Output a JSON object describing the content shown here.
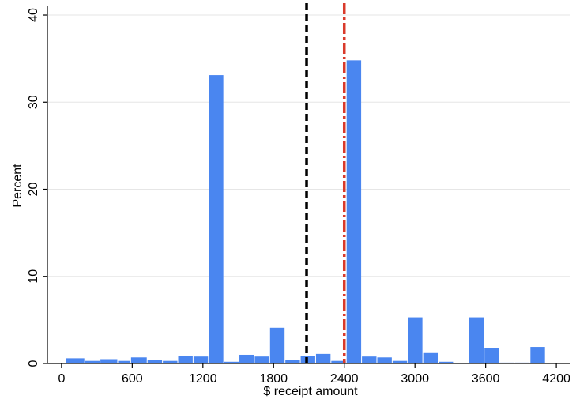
{
  "chart_data": {
    "type": "bar",
    "xlabel": "$ receipt amount",
    "ylabel": "Percent",
    "xlim": [
      -120,
      4320
    ],
    "ylim": [
      0,
      41
    ],
    "xticks": [
      0,
      600,
      1200,
      1800,
      2400,
      3000,
      3600,
      4200
    ],
    "yticks": [
      0,
      10,
      20,
      30,
      40
    ],
    "xtick_labels": [
      "0",
      "600",
      "1200",
      "1800",
      "2400",
      "3000",
      "3600",
      "4200"
    ],
    "ytick_labels": [
      "0",
      "10",
      "20",
      "30",
      "40"
    ],
    "grid": true,
    "bar_color": "#4a86f0",
    "bins": [
      {
        "x0": 40,
        "x1": 200,
        "value": 0.6
      },
      {
        "x0": 200,
        "x1": 330,
        "value": 0.3
      },
      {
        "x0": 330,
        "x1": 480,
        "value": 0.5
      },
      {
        "x0": 480,
        "x1": 590,
        "value": 0.3
      },
      {
        "x0": 590,
        "x1": 730,
        "value": 0.7
      },
      {
        "x0": 730,
        "x1": 860,
        "value": 0.4
      },
      {
        "x0": 860,
        "x1": 990,
        "value": 0.3
      },
      {
        "x0": 990,
        "x1": 1120,
        "value": 0.9
      },
      {
        "x0": 1120,
        "x1": 1250,
        "value": 0.8
      },
      {
        "x0": 1250,
        "x1": 1380,
        "value": 33.1
      },
      {
        "x0": 1380,
        "x1": 1510,
        "value": 0.2
      },
      {
        "x0": 1510,
        "x1": 1640,
        "value": 1.0
      },
      {
        "x0": 1640,
        "x1": 1770,
        "value": 0.8
      },
      {
        "x0": 1770,
        "x1": 1900,
        "value": 4.1
      },
      {
        "x0": 1900,
        "x1": 2030,
        "value": 0.4
      },
      {
        "x0": 2030,
        "x1": 2160,
        "value": 0.9
      },
      {
        "x0": 2160,
        "x1": 2290,
        "value": 1.1
      },
      {
        "x0": 2290,
        "x1": 2420,
        "value": 0.3
      },
      {
        "x0": 2420,
        "x1": 2550,
        "value": 34.8
      },
      {
        "x0": 2550,
        "x1": 2680,
        "value": 0.8
      },
      {
        "x0": 2680,
        "x1": 2810,
        "value": 0.7
      },
      {
        "x0": 2810,
        "x1": 2940,
        "value": 0.3
      },
      {
        "x0": 2940,
        "x1": 3070,
        "value": 5.3
      },
      {
        "x0": 3070,
        "x1": 3200,
        "value": 1.2
      },
      {
        "x0": 3200,
        "x1": 3330,
        "value": 0.2
      },
      {
        "x0": 3330,
        "x1": 3460,
        "value": 0.0
      },
      {
        "x0": 3460,
        "x1": 3590,
        "value": 5.3
      },
      {
        "x0": 3590,
        "x1": 3720,
        "value": 1.8
      },
      {
        "x0": 3720,
        "x1": 3850,
        "value": 0.1
      },
      {
        "x0": 3850,
        "x1": 3980,
        "value": 0.1
      },
      {
        "x0": 3980,
        "x1": 4110,
        "value": 1.9
      }
    ],
    "reference_lines": [
      {
        "x": 2080,
        "color": "#000000",
        "style": "dashed"
      },
      {
        "x": 2400,
        "color": "#d93a2b",
        "style": "dash-dot"
      }
    ]
  }
}
